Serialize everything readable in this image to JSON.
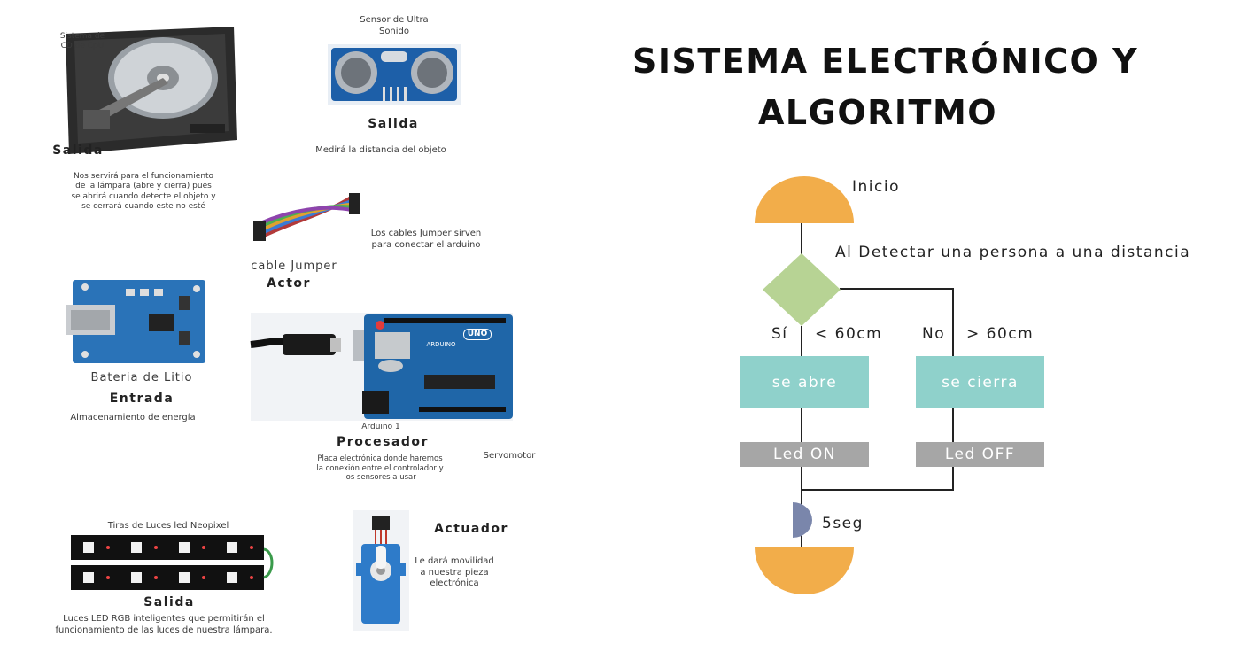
{
  "title": {
    "line1": "SISTEMA ELECTRÓNICO Y",
    "line2": "ALGORITMO"
  },
  "components": {
    "hdd": {
      "name": "Sistema de CD de CpU",
      "role": "Salida",
      "description": "Nos servirá para el funcionamiento de la lámpara (abre y cierra) pues se abrirá cuando detecte el objeto y se cerrará cuando este no esté"
    },
    "sensor": {
      "name": "Sensor de Ultra Sonido",
      "role": "Salida",
      "description": "Medirá la distancia del objeto"
    },
    "jumper": {
      "name": "cable Jumper",
      "role": "Actor",
      "description": "Los cables Jumper sirven para conectar el arduino"
    },
    "battery": {
      "name": "Bateria de Litio",
      "role": "Entrada",
      "description": "Almacenamiento de energía"
    },
    "arduino": {
      "name": "Arduino 1",
      "role": "Procesador",
      "description": "Placa electrónica donde haremos la conexión entre el controlador y los sensores a usar",
      "uno_label": "UNO",
      "brand_label": "ARDUINO"
    },
    "servo": {
      "name": "Servomotor",
      "role": "Actuador",
      "description": "Le dará movilidad a nuestra pieza electrónica"
    },
    "leds": {
      "name": "Tiras de Luces led Neopixel",
      "role": "Salida",
      "description": "Luces LED RGB inteligentes que permitirán el funcionamiento de las luces de nuestra lámpara."
    }
  },
  "flowchart": {
    "start": "Inicio",
    "decision": "Al Detectar una persona a una distancia",
    "yes_label": "Sí",
    "yes_condition": "< 60cm",
    "no_label": "No",
    "no_condition": "> 60cm",
    "yes_action": "se abre",
    "no_action": "se cierra",
    "yes_led": "Led ON",
    "no_led": "Led OFF",
    "delay": "5seg"
  },
  "colors": {
    "terminal": "#f2ad4a",
    "decision": "#b7d394",
    "process": "#8fd1cb",
    "led_box": "#a6a6a6",
    "delay": "#7a86ab",
    "board": "#1f66a8",
    "sensor_board": "#1d5fa8"
  }
}
